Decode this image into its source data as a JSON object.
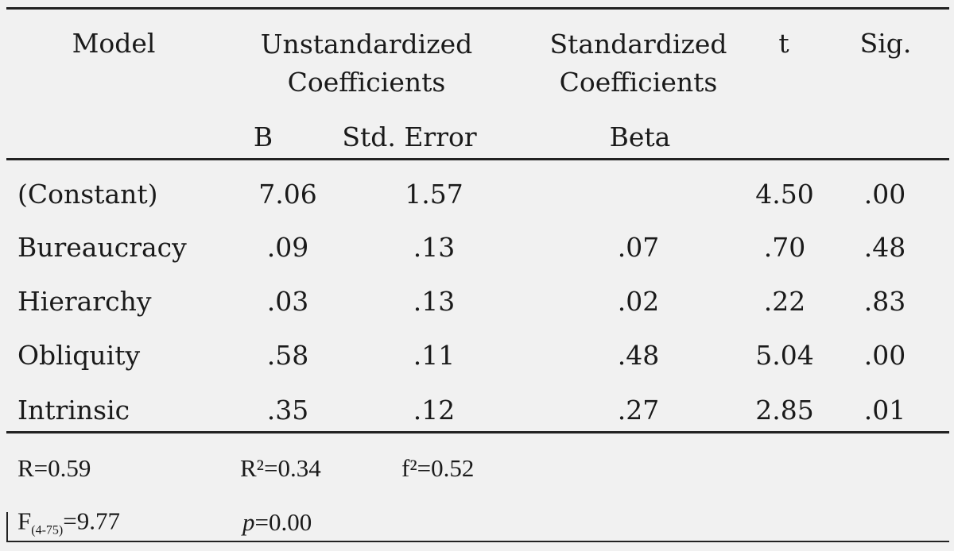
{
  "table": {
    "header": {
      "model": "Model",
      "unstandardized": "Unstandardized Coefficients",
      "standardized": "Standardized Coefficients",
      "t": "t",
      "sig": "Sig.",
      "b": "B",
      "std_error": "Std. Error",
      "beta": "Beta"
    },
    "rows": [
      [
        "(Constant)",
        "7.06",
        "1.57",
        "",
        "4.50",
        ".00"
      ],
      [
        "Bureaucracy",
        ".09",
        ".13",
        ".07",
        ".70",
        ".48"
      ],
      [
        "Hierarchy",
        ".03",
        ".13",
        ".02",
        ".22",
        ".83"
      ],
      [
        "Obliquity",
        ".58",
        ".11",
        ".48",
        "5.04",
        ".00"
      ],
      [
        "Intrinsic",
        ".35",
        ".12",
        ".27",
        "2.85",
        ".01"
      ]
    ],
    "footer": {
      "r": "R=0.59",
      "r2": "R²=0.34",
      "f2": "f²=0.52",
      "f_symbol": "F",
      "f_subscript": "(4-75)",
      "f_value": "=9.77",
      "p_symbol": "p",
      "p_value": "=0.00"
    }
  }
}
